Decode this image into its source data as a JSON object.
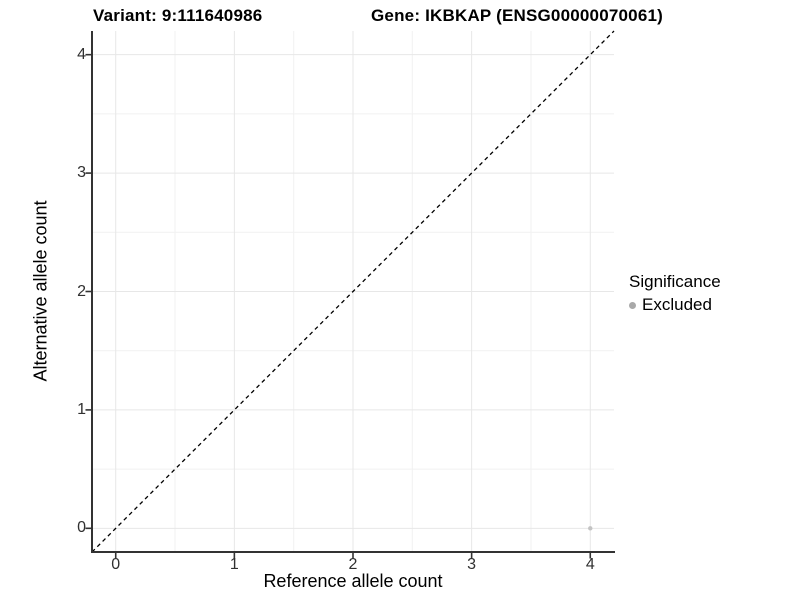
{
  "titles": {
    "variant": "Variant: 9:111640986",
    "gene": "Gene: IKBKAP (ENSG00000070061)"
  },
  "chart_data": {
    "type": "scatter",
    "xlabel": "Reference allele count",
    "ylabel": "Alternative allele count",
    "xlim": [
      -0.2,
      4.2
    ],
    "ylim": [
      -0.2,
      4.2
    ],
    "x_major_ticks": [
      0,
      1,
      2,
      3,
      4
    ],
    "y_major_ticks": [
      0,
      1,
      2,
      3,
      4
    ],
    "x_minor_ticks": [
      0.5,
      1.5,
      2.5,
      3.5
    ],
    "y_minor_ticks": [
      0.5,
      1.5,
      2.5,
      3.5
    ],
    "grid": "major and minor gridlines on white background",
    "identity_line": {
      "style": "dashed",
      "color": "#000000",
      "from": [
        -0.2,
        -0.2
      ],
      "to": [
        4.2,
        4.2
      ]
    },
    "series": [
      {
        "name": "Excluded",
        "color": "#c3c3c3",
        "point_radius": 2.2,
        "points": [
          {
            "x": 4,
            "y": 0
          }
        ]
      }
    ],
    "legend": {
      "title": "Significance",
      "position": "right",
      "entries": [
        {
          "label": "Excluded",
          "color": "#a9a9a9"
        }
      ]
    }
  },
  "colors": {
    "background": "#ffffff",
    "axis_line": "#333333",
    "tick_mark": "#333333",
    "axis_text": "#303030",
    "grid_major": "#e7e7e7",
    "grid_minor": "#f1f1f1"
  }
}
